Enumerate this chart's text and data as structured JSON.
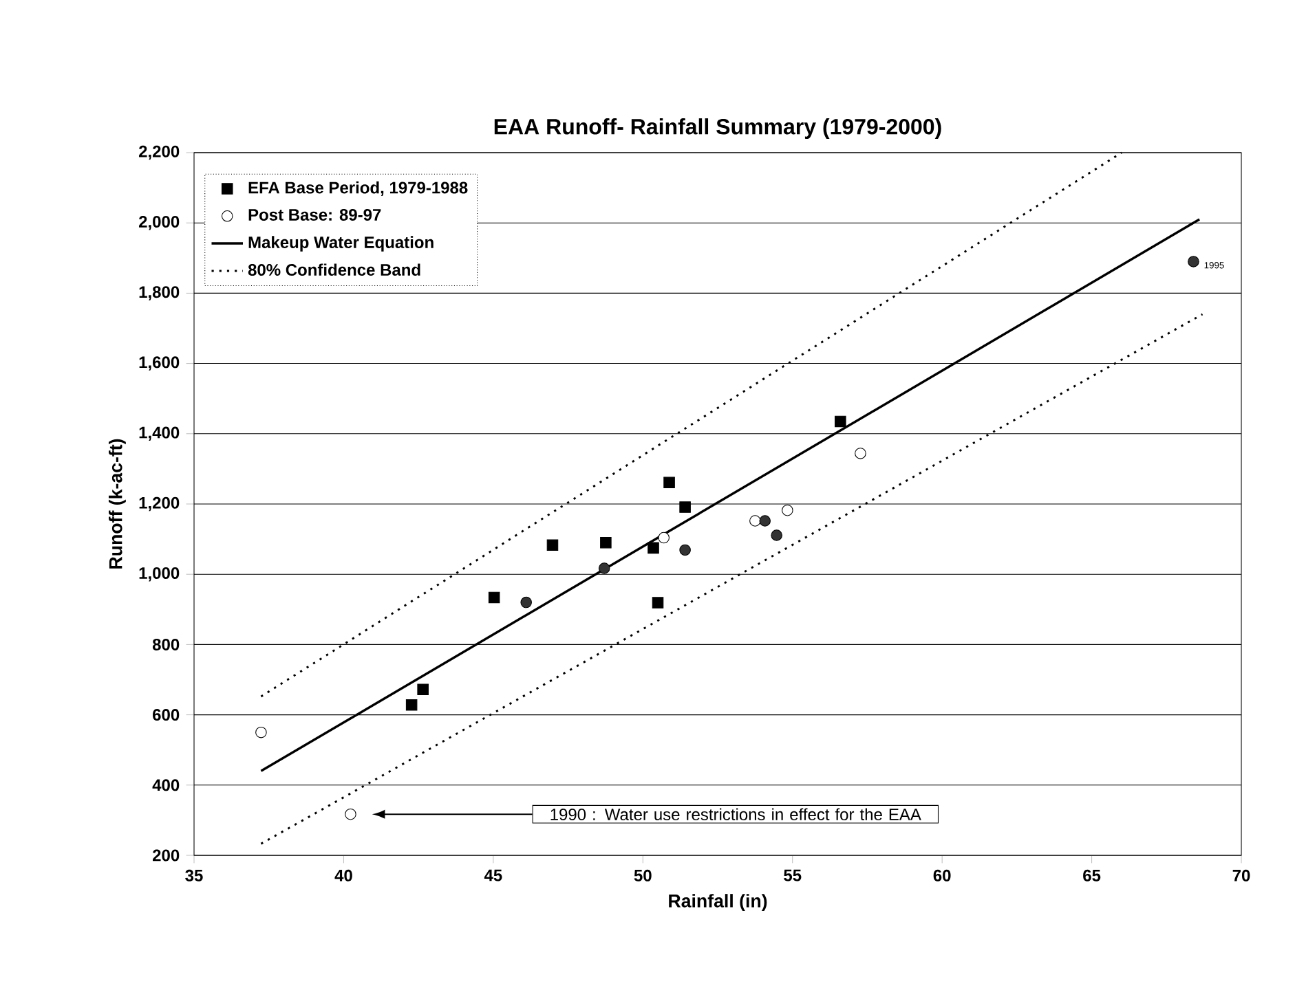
{
  "chart_data": {
    "type": "scatter",
    "title": "EAA Runoff- Rainfall Summary (1979-2000)",
    "xlabel": "Rainfall (in)",
    "ylabel": "Runoff (k-ac-ft)",
    "xlim": [
      35,
      70
    ],
    "ylim": [
      200,
      2200
    ],
    "xticks": [
      35,
      40,
      45,
      50,
      55,
      60,
      65,
      70
    ],
    "yticks": [
      {
        "value": 200,
        "label": "200"
      },
      {
        "value": 400,
        "label": "400"
      },
      {
        "value": 600,
        "label": "600"
      },
      {
        "value": 800,
        "label": "800"
      },
      {
        "value": 1000,
        "label": "1,000"
      },
      {
        "value": 1200,
        "label": "1,200"
      },
      {
        "value": 1400,
        "label": "1,400"
      },
      {
        "value": 1600,
        "label": "1,600"
      },
      {
        "value": 1800,
        "label": "1,800"
      },
      {
        "value": 2000,
        "label": "2,000"
      },
      {
        "value": 2200,
        "label": "2,200"
      }
    ],
    "grid": "y",
    "legend": "top left",
    "series": [
      {
        "name": "EFA Base Period, 1979-1988",
        "type": "scatter",
        "marker": "square",
        "color": "#000000",
        "x": [
          42.27,
          42.65,
          45.03,
          46.98,
          48.76,
          50.35,
          50.5,
          50.88,
          51.41,
          56.6
        ],
        "values": [
          628,
          672,
          934,
          1083,
          1090,
          1075,
          919,
          1261,
          1191,
          1435
        ]
      },
      {
        "name": "Post Base: 89-97",
        "type": "scatter",
        "marker": "circle",
        "color": "#ffffff",
        "x": [
          37.24,
          40.23,
          50.7,
          53.75,
          54.83,
          57.27
        ],
        "values": [
          550,
          317,
          1104,
          1152,
          1182,
          1344
        ]
      },
      {
        "name": "Makeup Water Equation",
        "type": "line",
        "marker": "none",
        "line_style": "solid",
        "color": "#000000",
        "x": [
          37.24,
          68.6
        ],
        "values": [
          440,
          2010
        ]
      },
      {
        "name": "80% Confidence Band",
        "type": "line",
        "marker": "none",
        "line_style": "dotted",
        "color": "#000000",
        "x": [
          37.24,
          66.0
        ],
        "values": [
          652,
          2200
        ]
      },
      {
        "type": "line",
        "marker": "none",
        "line_style": "dotted",
        "color": "#000000",
        "x": [
          37.24,
          68.7
        ],
        "values": [
          233,
          1740
        ]
      },
      {
        "type": "scatter",
        "marker": "circle",
        "color": "#333333",
        "x": [
          46.1,
          48.71,
          51.41,
          54.08,
          54.47,
          68.4
        ],
        "values": [
          920,
          1017,
          1069,
          1152,
          1111,
          1890
        ]
      }
    ],
    "annotations": [
      "1990 : Water use restrictions in effect for the EAA",
      {
        "text": "1995",
        "x": 68.4,
        "y": 1890
      }
    ]
  }
}
